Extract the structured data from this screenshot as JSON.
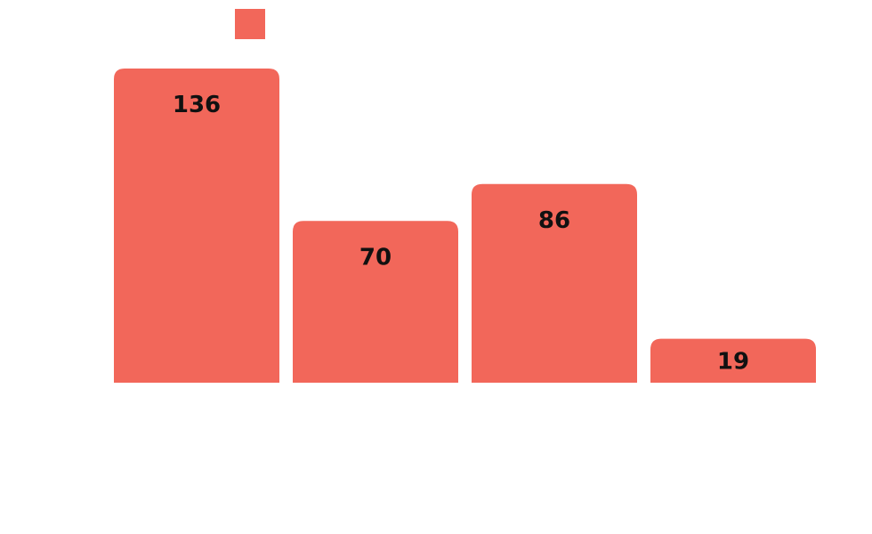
{
  "chart_data": {
    "type": "bar",
    "categories": [
      "",
      "",
      "",
      ""
    ],
    "values": [
      136,
      70,
      86,
      19
    ],
    "ylim": [
      0,
      136
    ],
    "grid": false,
    "legend": "top",
    "colors": {
      "bar": "#f2675a",
      "label": "#111111",
      "background": "#ffffff"
    }
  }
}
